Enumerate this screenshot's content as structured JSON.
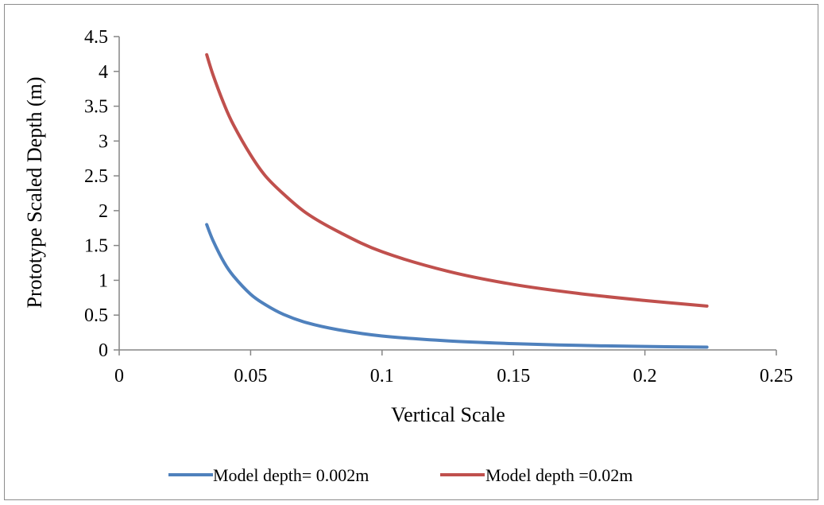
{
  "chart_data": {
    "type": "line",
    "title": "",
    "xlabel": "Vertical Scale",
    "ylabel": "Prototype Scaled Depth (m)",
    "xlim": [
      0,
      0.25
    ],
    "ylim": [
      0,
      4.5
    ],
    "x_ticks": [
      "0",
      "0.05",
      "0.1",
      "0.15",
      "0.2",
      "0.25"
    ],
    "y_ticks": [
      "0",
      "0.5",
      "1",
      "1.5",
      "2",
      "2.5",
      "3",
      "3.5",
      "4",
      "4.5"
    ],
    "x_tick_values": [
      0,
      0.05,
      0.1,
      0.15,
      0.2,
      0.25
    ],
    "y_tick_values": [
      0,
      0.5,
      1,
      1.5,
      2,
      2.5,
      3,
      3.5,
      4,
      4.5
    ],
    "grid": false,
    "legend_position": "bottom",
    "series": [
      {
        "name": "Model depth= 0.002m",
        "color": "#4f81bd",
        "x": [
          0.0333,
          0.0357,
          0.04,
          0.0435,
          0.05,
          0.0556,
          0.0625,
          0.0714,
          0.0833,
          0.1,
          0.125,
          0.15,
          0.175,
          0.2,
          0.2236
        ],
        "y": [
          1.8,
          1.57,
          1.25,
          1.06,
          0.8,
          0.65,
          0.51,
          0.39,
          0.29,
          0.2,
          0.13,
          0.09,
          0.065,
          0.05,
          0.04
        ]
      },
      {
        "name": "Model depth =0.02m",
        "color": "#c0504d",
        "x": [
          0.0333,
          0.0357,
          0.04,
          0.0435,
          0.05,
          0.0556,
          0.0625,
          0.0714,
          0.0833,
          0.1,
          0.125,
          0.15,
          0.175,
          0.2,
          0.2236
        ],
        "y": [
          4.24,
          3.95,
          3.52,
          3.23,
          2.8,
          2.5,
          2.24,
          1.96,
          1.7,
          1.41,
          1.13,
          0.94,
          0.81,
          0.71,
          0.63
        ]
      }
    ]
  }
}
